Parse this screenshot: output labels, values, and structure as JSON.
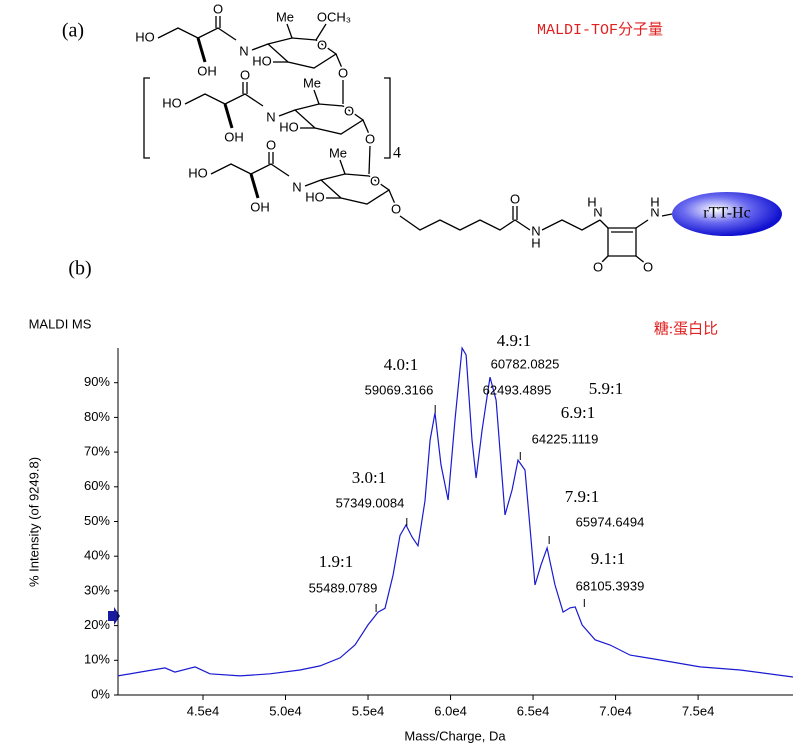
{
  "structure": {
    "panel_a": "(a)",
    "panel_b": "(b)",
    "repeat": "4",
    "protein": "rTT-Hc",
    "note": "MALDI-TOF分子量",
    "labels": [
      "HO",
      "O",
      "OH",
      "N",
      "HO",
      "Me",
      "O",
      "O",
      "OCH₃",
      "HO",
      "O",
      "OH",
      "N",
      "HO",
      "Me",
      "O",
      "O",
      "HO",
      "O",
      "OH",
      "N",
      "HO",
      "Me",
      "O",
      "O",
      "O",
      "N",
      "H",
      "N",
      "H",
      "N",
      "H",
      "O",
      "O"
    ]
  },
  "chart_data": {
    "type": "line",
    "title": "MALDI MS",
    "subtitle": "糖:蛋白比",
    "x_label": "Mass/Charge, Da",
    "y_label": "% Intensity (of 9249.8)",
    "x": [
      39850,
      41180,
      42700,
      43300,
      44520,
      45420,
      47240,
      49060,
      50880,
      52090,
      53300,
      54210,
      55000,
      55610,
      56030,
      56520,
      56940,
      57300,
      57670,
      58030,
      58450,
      58760,
      59060,
      59420,
      59850,
      60270,
      60700,
      60940,
      61300,
      61550,
      61910,
      62390,
      62760,
      63300,
      63730,
      64090,
      64510,
      65120,
      65480,
      65850,
      66330,
      66820,
      67240,
      67550,
      67970,
      68760,
      69670,
      70880,
      72700,
      75120,
      77550,
      80750
    ],
    "series": [
      {
        "color": "#1a1ad0",
        "values": [
          5.5,
          6.6,
          7.8,
          6.6,
          8.1,
          6.1,
          5.5,
          6.1,
          7.2,
          8.4,
          10.7,
          14.4,
          20.2,
          23.9,
          25,
          34.6,
          46,
          49,
          45.5,
          43,
          56,
          73.5,
          81.3,
          66.3,
          56.2,
          79.3,
          100,
          98,
          73.5,
          62.5,
          76.4,
          91.6,
          85,
          51.9,
          59.1,
          67.7,
          64.8,
          31.7,
          37.5,
          42.4,
          31.7,
          23.9,
          25.1,
          25.4,
          20.2,
          15.9,
          14.4,
          11.5,
          10.1,
          8.1,
          7.2,
          5.2
        ]
      }
    ],
    "xlim": [
      39850,
      80750
    ],
    "ylim": [
      0,
      100
    ],
    "xticks": [
      {
        "value": 45000,
        "label": "4.5e4"
      },
      {
        "value": 50000,
        "label": "5.0e4"
      },
      {
        "value": 55000,
        "label": "5.5e4"
      },
      {
        "value": 60000,
        "label": "6.0e4"
      },
      {
        "value": 65000,
        "label": "6.5e4"
      },
      {
        "value": 70000,
        "label": "7.0e4"
      },
      {
        "value": 75000,
        "label": "7.5e4"
      }
    ],
    "yticks": [
      {
        "value": 0,
        "label": "0%"
      },
      {
        "value": 10,
        "label": "10%"
      },
      {
        "value": 20,
        "label": "20%"
      },
      {
        "value": 30,
        "label": "30%"
      },
      {
        "value": 40,
        "label": "40%"
      },
      {
        "value": 50,
        "label": "50%"
      },
      {
        "value": 60,
        "label": "60%"
      },
      {
        "value": 70,
        "label": "70%"
      },
      {
        "value": 80,
        "label": "80%"
      },
      {
        "value": 90,
        "label": "90%"
      }
    ],
    "annotations": [
      {
        "text": "1.9:1",
        "x": 55489.0789
      },
      {
        "text": "3.0:1",
        "x": 57349.0084
      },
      {
        "text": "4.0:1",
        "x": 59069.3166
      },
      {
        "text": "4.9:1",
        "x": 60782.0825
      },
      {
        "text": "5.9:1",
        "x": 62493.4895
      },
      {
        "text": "6.9:1",
        "x": 64225.1119
      },
      {
        "text": "7.9:1",
        "x": 65974.6494
      },
      {
        "text": "9.1:1",
        "x": 68105.3939
      }
    ]
  }
}
